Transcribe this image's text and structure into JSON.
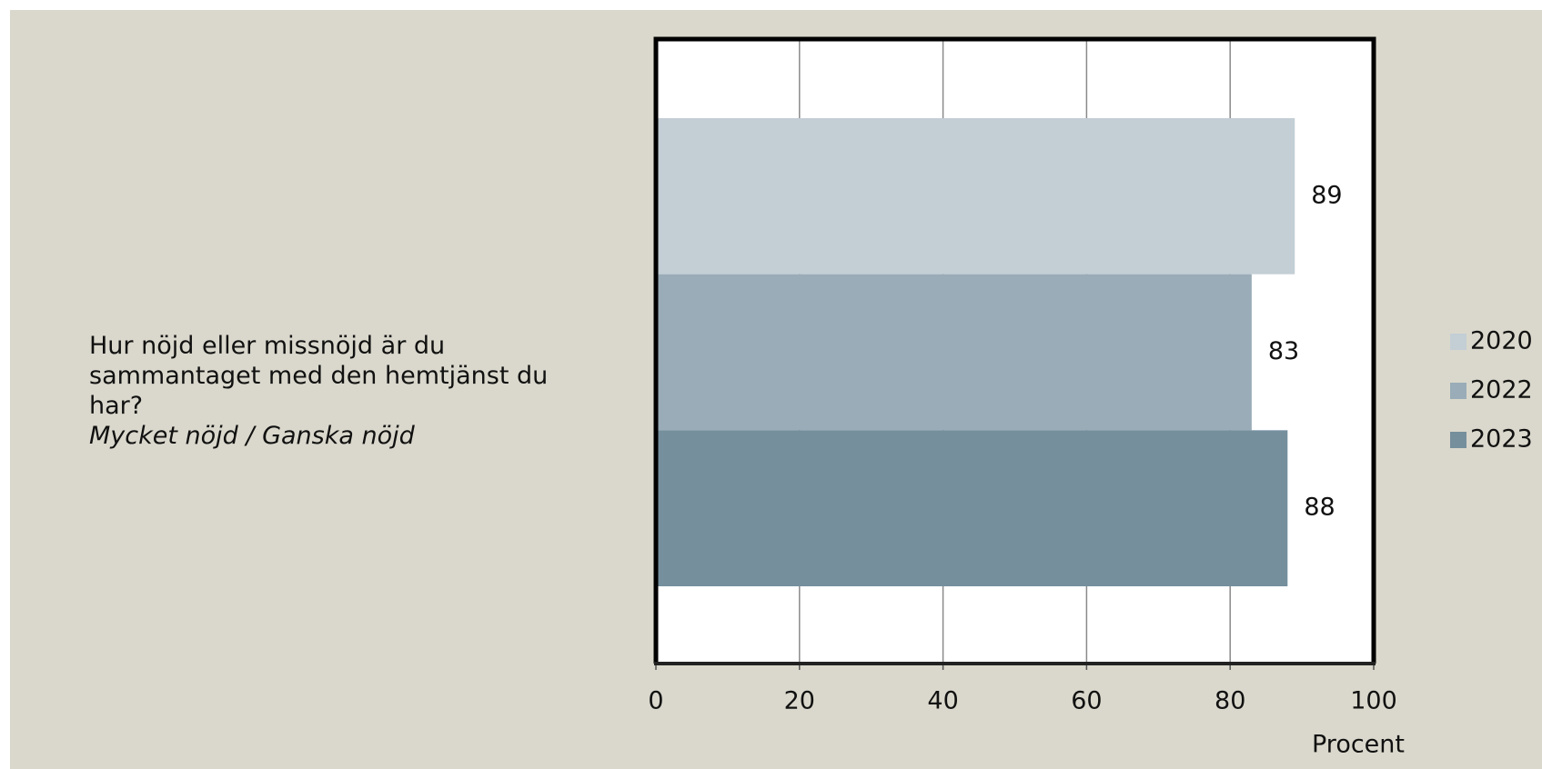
{
  "chart_data": {
    "type": "barh",
    "categories": [
      "Hur nöjd eller missnöjd är du sammantaget med den hemtjänst du har?"
    ],
    "category_subtitle": "Mycket nöjd / Ganska nöjd",
    "series": [
      {
        "name": "2020",
        "color": "#c3ced5",
        "values": [
          89
        ]
      },
      {
        "name": "2022",
        "color": "#99acb7",
        "values": [
          83
        ]
      },
      {
        "name": "2023",
        "color": "#758f9d",
        "values": [
          88
        ]
      }
    ],
    "xlim": [
      0,
      100
    ],
    "xticks": [
      0,
      20,
      40,
      60,
      80,
      100
    ],
    "x_label": "Procent",
    "grid": true,
    "legend": "right"
  }
}
